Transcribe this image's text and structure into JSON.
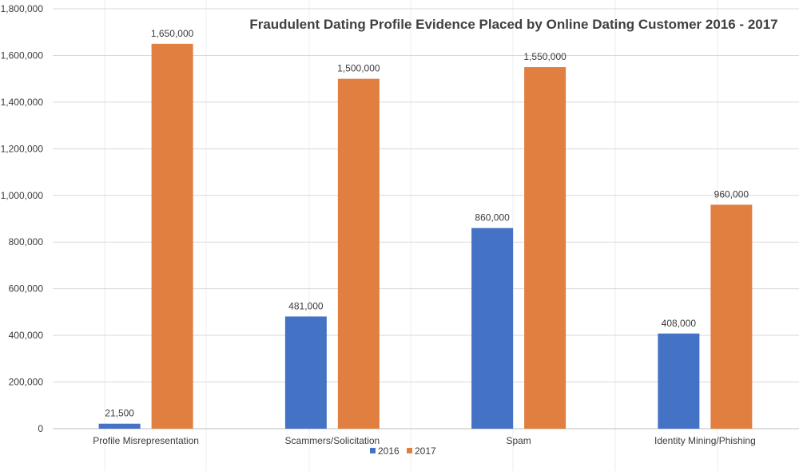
{
  "chart_data": {
    "type": "bar",
    "title": "Fraudulent Dating Profile Evidence Placed by Online Dating Customer 2016 - 2017",
    "xlabel": "",
    "ylabel": "",
    "categories": [
      "Profile Misrepresentation",
      "Scammers/Solicitation",
      "Spam",
      "Identity Mining/Phishing"
    ],
    "series": [
      {
        "name": "2016",
        "color": "#4472c4",
        "values": [
          21500,
          481000,
          860000,
          408000
        ],
        "labels": [
          "21,500",
          "481,000",
          "860,000",
          "408,000"
        ]
      },
      {
        "name": "2017",
        "color": "#e07f40",
        "values": [
          1650000,
          1500000,
          1550000,
          960000
        ],
        "labels": [
          "1,650,000",
          "1,500,000",
          "1,550,000",
          "960,000"
        ]
      }
    ],
    "ylim": [
      0,
      1800000
    ],
    "yticks": [
      0,
      200000,
      400000,
      600000,
      800000,
      1000000,
      1200000,
      1400000,
      1600000,
      1800000
    ],
    "ytick_labels": [
      "0",
      "200,000",
      "400,000",
      "600,000",
      "800,000",
      "1,000,000",
      "1,200,000",
      "1,400,000",
      "1,600,000",
      "1,800,000"
    ],
    "grid": true,
    "legend": "bottom-center"
  }
}
